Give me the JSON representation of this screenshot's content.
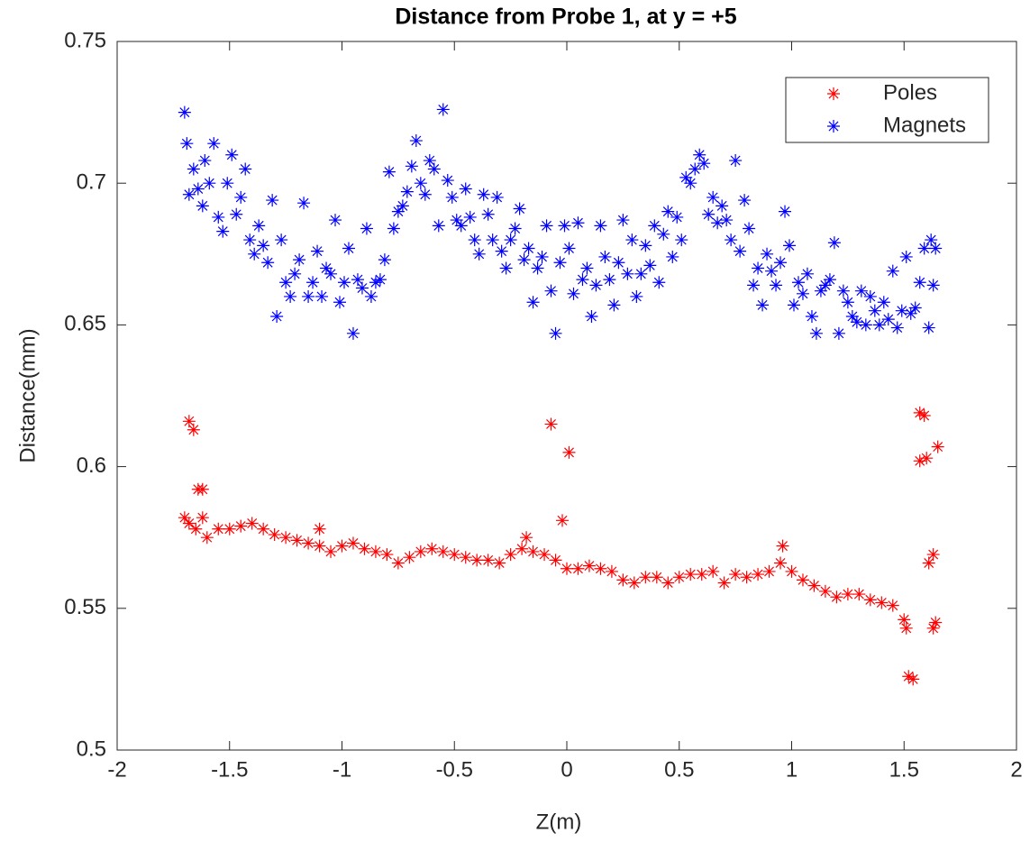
{
  "chart_data": {
    "type": "scatter",
    "title": "Distance from Probe 1, at y = +5",
    "x_label": "Z(m)",
    "y_label": "Distance(mm)",
    "xlim": [
      -2,
      2
    ],
    "xticks": [
      -2,
      -1.5,
      -1,
      -0.5,
      0,
      0.5,
      1,
      1.5,
      2
    ],
    "ylim": [
      0.5,
      0.75
    ],
    "yticks": [
      0.5,
      0.55,
      0.6,
      0.65,
      0.7,
      0.75
    ],
    "grid": false,
    "legend": "northeast",
    "series": [
      {
        "name": "Poles",
        "color": "#ff0000",
        "x": [
          -1.7,
          -1.65,
          -1.6,
          -1.55,
          -1.5,
          -1.45,
          -1.4,
          -1.35,
          -1.3,
          -1.25,
          -1.2,
          -1.15,
          -1.1,
          -1.05,
          -1.0,
          -0.95,
          -0.9,
          -0.85,
          -0.8,
          -0.75,
          -0.7,
          -0.65,
          -0.6,
          -0.55,
          -0.5,
          -0.45,
          -0.4,
          -0.35,
          -0.3,
          -0.25,
          -0.2,
          -0.15,
          -0.1,
          -0.05,
          0.0,
          0.05,
          0.1,
          0.15,
          0.2,
          0.25,
          0.3,
          0.35,
          0.4,
          0.45,
          0.5,
          0.55,
          0.6,
          0.65,
          0.7,
          0.75,
          0.8,
          0.85,
          0.9,
          0.95,
          1.0,
          1.05,
          1.1,
          1.15,
          1.2,
          1.25,
          1.3,
          1.35,
          1.4,
          1.45,
          1.5,
          1.51,
          1.52,
          1.54,
          1.57,
          1.59,
          1.57,
          1.6,
          1.65,
          1.61,
          1.63,
          1.64,
          1.63,
          -1.68,
          -1.66,
          -1.64,
          -1.62,
          -1.62,
          -1.68,
          -0.07,
          0.01,
          -0.02,
          0.96,
          -0.18,
          -1.1
        ],
        "values": [
          0.582,
          0.578,
          0.575,
          0.578,
          0.578,
          0.579,
          0.58,
          0.578,
          0.576,
          0.575,
          0.574,
          0.573,
          0.572,
          0.57,
          0.572,
          0.573,
          0.571,
          0.57,
          0.569,
          0.566,
          0.568,
          0.57,
          0.571,
          0.57,
          0.569,
          0.568,
          0.567,
          0.567,
          0.566,
          0.569,
          0.571,
          0.57,
          0.569,
          0.567,
          0.564,
          0.564,
          0.565,
          0.564,
          0.563,
          0.56,
          0.559,
          0.561,
          0.561,
          0.559,
          0.561,
          0.562,
          0.562,
          0.563,
          0.559,
          0.562,
          0.561,
          0.562,
          0.563,
          0.566,
          0.563,
          0.56,
          0.558,
          0.556,
          0.554,
          0.555,
          0.555,
          0.553,
          0.552,
          0.551,
          0.546,
          0.543,
          0.526,
          0.525,
          0.619,
          0.618,
          0.602,
          0.603,
          0.607,
          0.566,
          0.569,
          0.545,
          0.543,
          0.616,
          0.613,
          0.592,
          0.592,
          0.582,
          0.58,
          0.615,
          0.605,
          0.581,
          0.572,
          0.575,
          0.578
        ]
      },
      {
        "name": "Magnets",
        "color": "#0000ff",
        "x": [
          -1.7,
          -1.69,
          -1.68,
          -1.66,
          -1.64,
          -1.62,
          -1.61,
          -1.59,
          -1.57,
          -1.55,
          -1.53,
          -1.51,
          -1.49,
          -1.47,
          -1.45,
          -1.43,
          -1.41,
          -1.39,
          -1.37,
          -1.35,
          -1.33,
          -1.31,
          -1.29,
          -1.27,
          -1.25,
          -1.23,
          -1.21,
          -1.19,
          -1.17,
          -1.15,
          -1.13,
          -1.11,
          -1.09,
          -1.07,
          -1.05,
          -1.03,
          -1.01,
          -0.99,
          -0.97,
          -0.95,
          -0.93,
          -0.91,
          -0.89,
          -0.87,
          -0.85,
          -0.83,
          -0.81,
          -0.79,
          -0.77,
          -0.75,
          -0.73,
          -0.71,
          -0.69,
          -0.67,
          -0.65,
          -0.63,
          -0.61,
          -0.59,
          -0.57,
          -0.55,
          -0.53,
          -0.51,
          -0.49,
          -0.47,
          -0.45,
          -0.43,
          -0.41,
          -0.39,
          -0.37,
          -0.35,
          -0.33,
          -0.31,
          -0.29,
          -0.27,
          -0.25,
          -0.23,
          -0.21,
          -0.19,
          -0.17,
          -0.15,
          -0.13,
          -0.11,
          -0.09,
          -0.07,
          -0.05,
          -0.03,
          -0.01,
          0.01,
          0.03,
          0.05,
          0.07,
          0.09,
          0.11,
          0.13,
          0.15,
          0.17,
          0.19,
          0.21,
          0.23,
          0.25,
          0.27,
          0.29,
          0.31,
          0.33,
          0.35,
          0.37,
          0.39,
          0.41,
          0.43,
          0.45,
          0.47,
          0.49,
          0.51,
          0.53,
          0.55,
          0.57,
          0.59,
          0.61,
          0.63,
          0.65,
          0.67,
          0.69,
          0.71,
          0.73,
          0.75,
          0.77,
          0.79,
          0.81,
          0.83,
          0.85,
          0.87,
          0.89,
          0.91,
          0.93,
          0.95,
          0.97,
          0.99,
          1.01,
          1.03,
          1.05,
          1.07,
          1.09,
          1.11,
          1.13,
          1.15,
          1.17,
          1.19,
          1.21,
          1.23,
          1.25,
          1.27,
          1.29,
          1.31,
          1.33,
          1.35,
          1.37,
          1.39,
          1.41,
          1.43,
          1.45,
          1.47,
          1.49,
          1.51,
          1.53,
          1.55,
          1.57,
          1.59,
          1.61,
          1.62,
          1.63,
          1.64
        ],
        "values": [
          0.725,
          0.714,
          0.696,
          0.705,
          0.698,
          0.692,
          0.708,
          0.7,
          0.714,
          0.688,
          0.683,
          0.7,
          0.71,
          0.689,
          0.695,
          0.705,
          0.68,
          0.675,
          0.685,
          0.678,
          0.672,
          0.694,
          0.653,
          0.68,
          0.665,
          0.66,
          0.668,
          0.673,
          0.693,
          0.66,
          0.665,
          0.676,
          0.66,
          0.67,
          0.668,
          0.687,
          0.658,
          0.665,
          0.677,
          0.647,
          0.666,
          0.663,
          0.684,
          0.66,
          0.665,
          0.666,
          0.673,
          0.704,
          0.684,
          0.69,
          0.692,
          0.697,
          0.706,
          0.715,
          0.7,
          0.696,
          0.708,
          0.705,
          0.685,
          0.726,
          0.701,
          0.695,
          0.687,
          0.685,
          0.698,
          0.688,
          0.68,
          0.675,
          0.696,
          0.689,
          0.68,
          0.695,
          0.676,
          0.67,
          0.68,
          0.684,
          0.691,
          0.673,
          0.677,
          0.658,
          0.67,
          0.674,
          0.685,
          0.662,
          0.647,
          0.672,
          0.685,
          0.677,
          0.661,
          0.686,
          0.666,
          0.67,
          0.653,
          0.664,
          0.685,
          0.674,
          0.666,
          0.657,
          0.672,
          0.687,
          0.668,
          0.68,
          0.66,
          0.668,
          0.678,
          0.671,
          0.685,
          0.665,
          0.682,
          0.69,
          0.674,
          0.688,
          0.68,
          0.702,
          0.7,
          0.705,
          0.71,
          0.707,
          0.689,
          0.695,
          0.686,
          0.692,
          0.687,
          0.68,
          0.708,
          0.676,
          0.694,
          0.684,
          0.664,
          0.67,
          0.657,
          0.675,
          0.669,
          0.664,
          0.672,
          0.69,
          0.678,
          0.657,
          0.665,
          0.661,
          0.668,
          0.653,
          0.647,
          0.662,
          0.664,
          0.666,
          0.679,
          0.647,
          0.662,
          0.658,
          0.653,
          0.651,
          0.662,
          0.65,
          0.66,
          0.655,
          0.65,
          0.658,
          0.652,
          0.669,
          0.649,
          0.655,
          0.674,
          0.654,
          0.656,
          0.665,
          0.677,
          0.649,
          0.68,
          0.664,
          0.677
        ]
      }
    ]
  }
}
